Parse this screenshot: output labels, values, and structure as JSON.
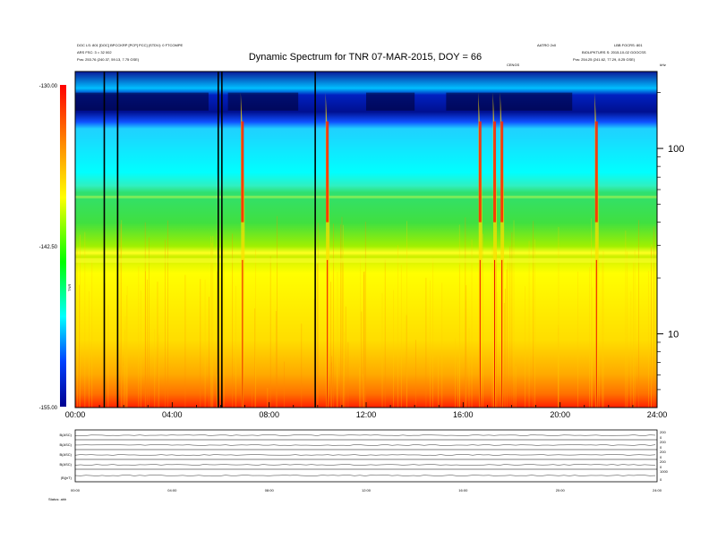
{
  "chart_data": {
    "type": "heatmap",
    "title": "Dynamic Spectrum for TNR 07-MAR-2015, DOY = 66",
    "header": {
      "left": [
        "DOC LS: 801 [DOC] BPCCKRP [PCP] PCC] (STDV): 0 FTCOMPE",
        "ARS FSC: 3 = 32 002",
        "Pos: 253.76 (240.37, 59.13, 7.75 GSE)"
      ],
      "center_top": "AATRO 2x0",
      "center_small": "CENGS",
      "right": [
        "LBB FOCRS: 801",
        "BIOLIPKTURS S: 2015-10-02 GOOCSS",
        "Pos: 254.25 (241.62, 77.29, 8.25 GSE)"
      ],
      "right_corner": "kHz"
    },
    "x_axis": {
      "ticks": [
        "00:00",
        "04:00",
        "08:00",
        "12:00",
        "16:00",
        "20:00",
        "24:00"
      ],
      "range_hours": [
        0,
        24
      ]
    },
    "y_axis": {
      "scale": "log",
      "unit_corner": "kHz",
      "ticks": [
        "100",
        "10"
      ],
      "range_khz": [
        4,
        260
      ]
    },
    "colorbar": {
      "ticks": [
        "-130.00",
        "-142.50",
        "-155.00"
      ],
      "range": [
        -155,
        -130
      ],
      "label": "TNR"
    },
    "features": {
      "type3_bursts_hours": [
        6.9,
        10.4,
        16.7,
        17.3,
        17.6,
        21.5
      ],
      "band_edge_upper_khz": 55,
      "band_edge_lower_khz": 25,
      "data_gap_hours": [
        1.2,
        1.75,
        5.9,
        6.05,
        9.9
      ]
    },
    "panels": {
      "labels": [
        "B(ASC)",
        "B(ASC)",
        "B(ASC)",
        "B(ASC)",
        "|B|(nT)"
      ],
      "right_ticks": [
        [
          "200",
          "0"
        ],
        [
          "200",
          "0"
        ],
        [
          "200",
          "0"
        ],
        [
          "200",
          "0"
        ],
        [
          "1000",
          "0"
        ]
      ],
      "x_ticks": [
        "00:00",
        "04:00",
        "08:00",
        "12:00",
        "16:00",
        "20:00",
        "24:00"
      ],
      "footer": "Status: ahh"
    },
    "colors": {
      "deep_blue": "#0000aa",
      "cyan": "#00ffff",
      "green": "#22dd44",
      "yellow": "#ffff00",
      "orange": "#ff9900",
      "red": "#ff0000"
    }
  }
}
